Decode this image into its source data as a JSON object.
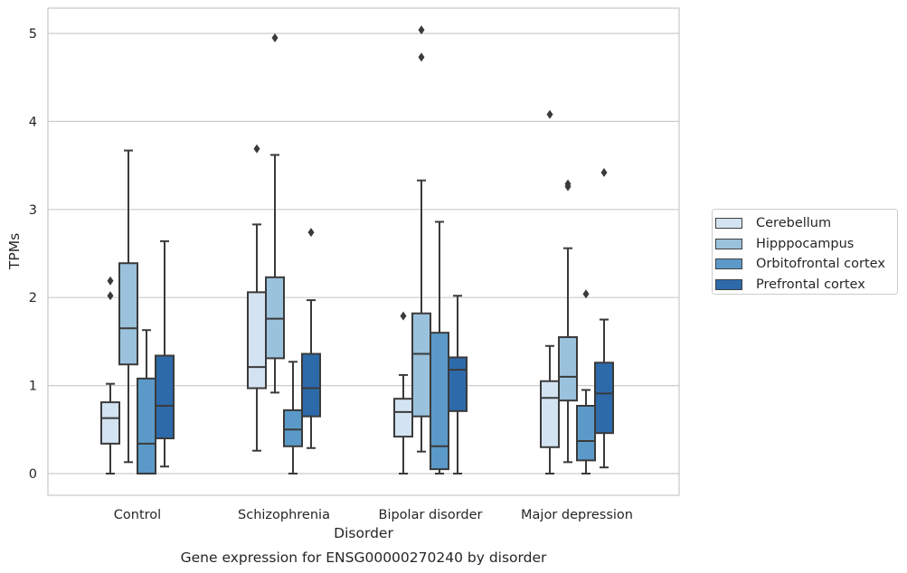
{
  "chart_data": {
    "type": "box",
    "title": "Gene expression for ENSG00000270240 by disorder",
    "xlabel": "Disorder",
    "ylabel": "TPMs",
    "ylim": [
      -0.25,
      5.3
    ],
    "yticks": [
      0,
      1,
      2,
      3,
      4,
      5
    ],
    "grid": "horizontal",
    "legend_position": "right",
    "categories": [
      "Control",
      "Schizophrenia",
      "Bipolar disorder",
      "Major depression"
    ],
    "series": [
      {
        "name": "Cerebellum",
        "color": "#d4e3f2",
        "boxes": [
          {
            "whisker_low": 0.0,
            "q1": 0.34,
            "median": 0.63,
            "q3": 0.81,
            "whisker_high": 1.02,
            "outliers": [
              2.02,
              2.19
            ]
          },
          {
            "whisker_low": 0.26,
            "q1": 0.97,
            "median": 1.21,
            "q3": 2.06,
            "whisker_high": 2.83,
            "outliers": [
              3.69
            ]
          },
          {
            "whisker_low": 0.0,
            "q1": 0.42,
            "median": 0.7,
            "q3": 0.85,
            "whisker_high": 1.12,
            "outliers": [
              1.79
            ]
          },
          {
            "whisker_low": 0.0,
            "q1": 0.3,
            "median": 0.86,
            "q3": 1.05,
            "whisker_high": 1.45,
            "outliers": [
              4.08
            ]
          }
        ]
      },
      {
        "name": "Hipppocampus",
        "color": "#9ac2dc",
        "boxes": [
          {
            "whisker_low": 0.13,
            "q1": 1.24,
            "median": 1.65,
            "q3": 2.39,
            "whisker_high": 3.67,
            "outliers": []
          },
          {
            "whisker_low": 0.92,
            "q1": 1.31,
            "median": 1.76,
            "q3": 2.23,
            "whisker_high": 3.62,
            "outliers": [
              4.95
            ]
          },
          {
            "whisker_low": 0.25,
            "q1": 0.65,
            "median": 1.36,
            "q3": 1.82,
            "whisker_high": 3.33,
            "outliers": [
              4.73,
              5.04
            ]
          },
          {
            "whisker_low": 0.13,
            "q1": 0.83,
            "median": 1.1,
            "q3": 1.55,
            "whisker_high": 2.56,
            "outliers": [
              3.26,
              3.29
            ]
          }
        ]
      },
      {
        "name": "Orbitofrontal cortex",
        "color": "#5b9ac8",
        "boxes": [
          {
            "whisker_low": 0.0,
            "q1": 0.0,
            "median": 0.34,
            "q3": 1.08,
            "whisker_high": 1.63,
            "outliers": []
          },
          {
            "whisker_low": 0.0,
            "q1": 0.31,
            "median": 0.5,
            "q3": 0.72,
            "whisker_high": 1.27,
            "outliers": []
          },
          {
            "whisker_low": 0.0,
            "q1": 0.05,
            "median": 0.31,
            "q3": 1.6,
            "whisker_high": 2.86,
            "outliers": []
          },
          {
            "whisker_low": 0.0,
            "q1": 0.15,
            "median": 0.37,
            "q3": 0.77,
            "whisker_high": 0.95,
            "outliers": [
              2.04
            ]
          }
        ]
      },
      {
        "name": "Prefrontal cortex",
        "color": "#2d6aaa",
        "boxes": [
          {
            "whisker_low": 0.08,
            "q1": 0.4,
            "median": 0.77,
            "q3": 1.34,
            "whisker_high": 2.64,
            "outliers": []
          },
          {
            "whisker_low": 0.29,
            "q1": 0.65,
            "median": 0.97,
            "q3": 1.36,
            "whisker_high": 1.97,
            "outliers": [
              2.74
            ]
          },
          {
            "whisker_low": 0.0,
            "q1": 0.71,
            "median": 1.18,
            "q3": 1.32,
            "whisker_high": 2.02,
            "outliers": []
          },
          {
            "whisker_low": 0.07,
            "q1": 0.46,
            "median": 0.91,
            "q3": 1.26,
            "whisker_high": 1.75,
            "outliers": [
              3.42
            ]
          }
        ]
      }
    ]
  }
}
